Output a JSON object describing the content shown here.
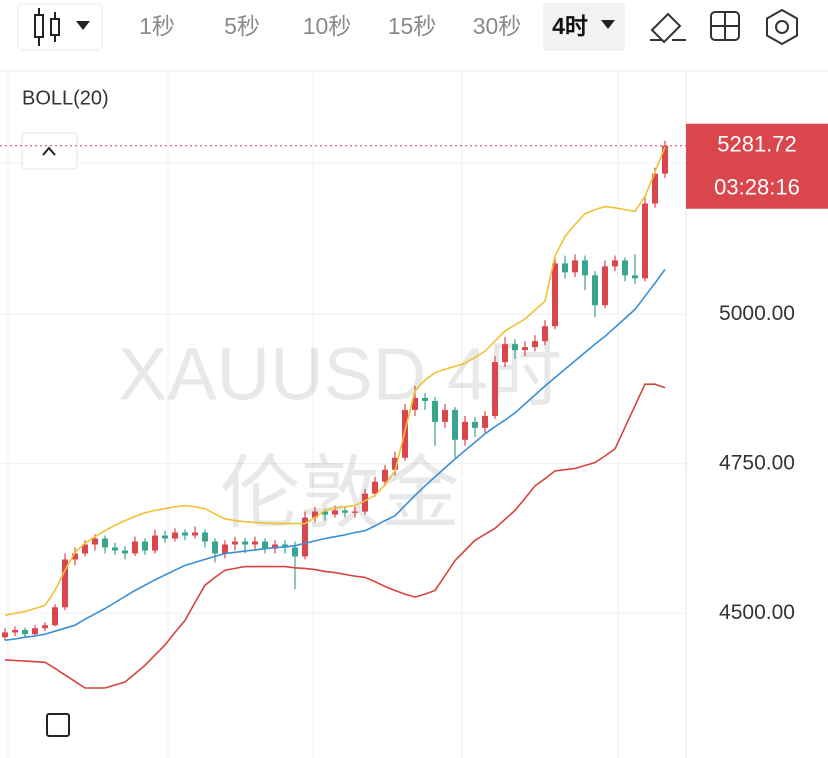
{
  "toolbar": {
    "intervals": [
      "1秒",
      "5秒",
      "10秒",
      "15秒",
      "30秒",
      "4时"
    ],
    "active": 5
  },
  "chart_data": {
    "type": "candlestick",
    "indicator": "BOLL(20)",
    "watermark": [
      "XAUUSD 4时",
      "伦敦金"
    ],
    "up_color": "#d9474c",
    "down_color": "#3aa58c",
    "ylim": [
      4258,
      5405
    ],
    "yticks": [
      {
        "value": 4500,
        "label": "4500.00"
      },
      {
        "value": 4750,
        "label": "4750.00"
      },
      {
        "value": 5000,
        "label": "5000.00"
      }
    ],
    "grid": true,
    "last_price": {
      "value": 5281.72,
      "label": "5281.72"
    },
    "countdown": "03:28:16",
    "candles": [
      [
        4460,
        4475,
        4455,
        4468
      ],
      [
        4468,
        4478,
        4462,
        4472
      ],
      [
        4472,
        4476,
        4460,
        4465
      ],
      [
        4465,
        4480,
        4462,
        4475
      ],
      [
        4475,
        4485,
        4470,
        4480
      ],
      [
        4480,
        4515,
        4478,
        4510
      ],
      [
        4510,
        4600,
        4505,
        4590
      ],
      [
        4590,
        4610,
        4580,
        4600
      ],
      [
        4600,
        4622,
        4595,
        4615
      ],
      [
        4615,
        4632,
        4605,
        4625
      ],
      [
        4625,
        4630,
        4600,
        4610
      ],
      [
        4610,
        4618,
        4598,
        4605
      ],
      [
        4605,
        4612,
        4590,
        4600
      ],
      [
        4600,
        4628,
        4596,
        4620
      ],
      [
        4620,
        4625,
        4598,
        4605
      ],
      [
        4605,
        4640,
        4600,
        4630
      ],
      [
        4630,
        4638,
        4618,
        4625
      ],
      [
        4625,
        4642,
        4620,
        4635
      ],
      [
        4635,
        4640,
        4622,
        4630
      ],
      [
        4630,
        4645,
        4625,
        4635
      ],
      [
        4635,
        4640,
        4610,
        4620
      ],
      [
        4620,
        4625,
        4585,
        4600
      ],
      [
        4600,
        4622,
        4592,
        4615
      ],
      [
        4615,
        4628,
        4605,
        4620
      ],
      [
        4620,
        4626,
        4600,
        4615
      ],
      [
        4615,
        4628,
        4605,
        4620
      ],
      [
        4620,
        4625,
        4600,
        4608
      ],
      [
        4608,
        4622,
        4600,
        4615
      ],
      [
        4615,
        4622,
        4600,
        4610
      ],
      [
        4610,
        4620,
        4540,
        4595
      ],
      [
        4595,
        4670,
        4590,
        4660
      ],
      [
        4660,
        4678,
        4652,
        4670
      ],
      [
        4670,
        4675,
        4655,
        4665
      ],
      [
        4665,
        4680,
        4660,
        4672
      ],
      [
        4672,
        4678,
        4660,
        4668
      ],
      [
        4668,
        4678,
        4660,
        4670
      ],
      [
        4670,
        4708,
        4665,
        4700
      ],
      [
        4700,
        4728,
        4695,
        4720
      ],
      [
        4720,
        4748,
        4712,
        4740
      ],
      [
        4740,
        4770,
        4730,
        4760
      ],
      [
        4760,
        4850,
        4755,
        4840
      ],
      [
        4840,
        4880,
        4830,
        4860
      ],
      [
        4860,
        4868,
        4840,
        4855
      ],
      [
        4855,
        4862,
        4780,
        4820
      ],
      [
        4820,
        4850,
        4810,
        4840
      ],
      [
        4840,
        4845,
        4760,
        4790
      ],
      [
        4790,
        4830,
        4780,
        4820
      ],
      [
        4820,
        4828,
        4795,
        4810
      ],
      [
        4810,
        4838,
        4802,
        4830
      ],
      [
        4830,
        4930,
        4825,
        4920
      ],
      [
        4920,
        4962,
        4912,
        4950
      ],
      [
        4950,
        4958,
        4925,
        4940
      ],
      [
        4940,
        4955,
        4930,
        4945
      ],
      [
        4945,
        4965,
        4938,
        4955
      ],
      [
        4955,
        4990,
        4948,
        4980
      ],
      [
        4980,
        5095,
        4975,
        5085
      ],
      [
        5085,
        5098,
        5060,
        5070
      ],
      [
        5070,
        5100,
        5062,
        5090
      ],
      [
        5090,
        5098,
        5040,
        5065
      ],
      [
        5065,
        5072,
        4995,
        5015
      ],
      [
        5015,
        5090,
        5010,
        5080
      ],
      [
        5080,
        5098,
        5072,
        5090
      ],
      [
        5090,
        5095,
        5055,
        5065
      ],
      [
        5065,
        5100,
        5050,
        5060
      ],
      [
        5060,
        5195,
        5055,
        5185
      ],
      [
        5185,
        5245,
        5178,
        5235
      ],
      [
        5235,
        5290,
        5228,
        5281.72
      ]
    ],
    "series": [
      {
        "color": "#eec234",
        "values": [
          4497,
          4500,
          4503,
          4508,
          4513,
          4538,
          4572,
          4602,
          4617,
          4628,
          4638,
          4647,
          4655,
          4662,
          4668,
          4672,
          4675,
          4678,
          4680,
          4678,
          4675,
          4666,
          4658,
          4655,
          4653,
          4652,
          4651,
          4650,
          4650,
          4650,
          4650,
          4660,
          4672,
          4676,
          4678,
          4680,
          4688,
          4697,
          4715,
          4738,
          4805,
          4872,
          4890,
          4902,
          4908,
          4913,
          4918,
          4928,
          4938,
          4955,
          4972,
          4982,
          4992,
          5007,
          5022,
          5097,
          5130,
          5150,
          5168,
          5175,
          5180,
          5178,
          5175,
          5172,
          5197,
          5238,
          5280
        ]
      },
      {
        "color": "#3a8fd6",
        "values": [
          4455,
          4457,
          4460,
          4462,
          4465,
          4470,
          4475,
          4480,
          4490,
          4499,
          4508,
          4518,
          4528,
          4538,
          4547,
          4556,
          4564,
          4572,
          4580,
          4585,
          4590,
          4595,
          4600,
          4602,
          4604,
          4606,
          4608,
          4610,
          4611,
          4613,
          4617,
          4621,
          4625,
          4628,
          4631,
          4635,
          4638,
          4646,
          4655,
          4663,
          4680,
          4697,
          4713,
          4728,
          4743,
          4758,
          4772,
          4786,
          4800,
          4812,
          4823,
          4835,
          4850,
          4865,
          4880,
          4894,
          4908,
          4922,
          4936,
          4950,
          4963,
          4978,
          4993,
          5008,
          5030,
          5052,
          5075
        ]
      },
      {
        "color": "#d6453b",
        "values": [
          4422,
          4421,
          4420,
          4419,
          4418,
          4408,
          4397,
          4386,
          4375,
          4375,
          4375,
          4380,
          4385,
          4399,
          4413,
          4430,
          4447,
          4468,
          4488,
          4518,
          4547,
          4560,
          4572,
          4575,
          4578,
          4578,
          4578,
          4578,
          4578,
          4576,
          4575,
          4573,
          4570,
          4568,
          4565,
          4562,
          4560,
          4553,
          4545,
          4538,
          4532,
          4527,
          4532,
          4538,
          4563,
          4588,
          4605,
          4622,
          4632,
          4642,
          4657,
          4672,
          4692,
          4713,
          4725,
          4738,
          4740,
          4742,
          4747,
          4752,
          4763,
          4775,
          4811,
          4847,
          4883,
          4883,
          4877
        ]
      }
    ]
  }
}
